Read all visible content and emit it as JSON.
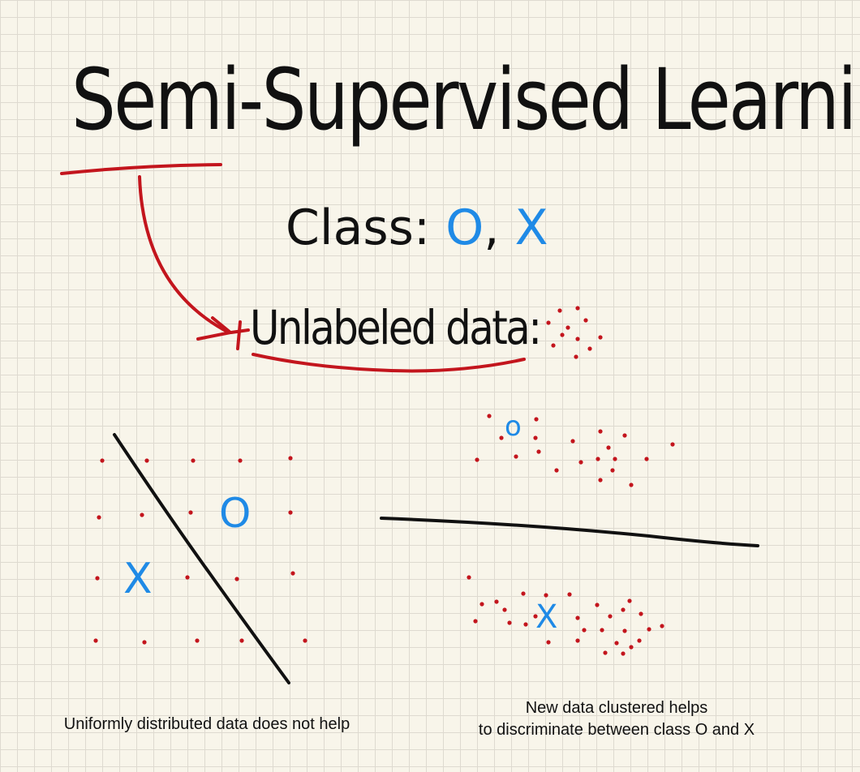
{
  "title": "Semi-Supervised Learning",
  "class_line": {
    "label": "Class:",
    "o": "O",
    "comma": ",",
    "x": "X"
  },
  "unlabeled_label": "Unlabeled data:",
  "left_panel": {
    "o_mark": "O",
    "x_mark": "X",
    "caption": "Uniformly distributed data does not help"
  },
  "right_panel": {
    "o_mark": "o",
    "x_mark": "X",
    "caption_line1": "New data clustered helps",
    "caption_line2": "to discriminate between class O and X"
  },
  "colors": {
    "background": "#f8f5ea",
    "grid": "#dedad0",
    "ink": "#111111",
    "annotation_red": "#c3151d",
    "class_blue": "#1f8ae6"
  }
}
